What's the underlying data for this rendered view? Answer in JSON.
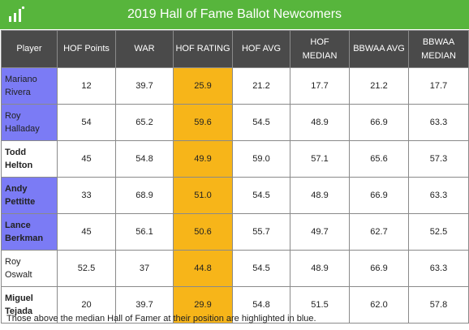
{
  "header": {
    "title": "2019 Hall of Fame Ballot Newcomers",
    "logo_icon": "bar-logo-icon",
    "bg_color": "#57b53c"
  },
  "table": {
    "columns": [
      "Player",
      "HOF Points",
      "WAR",
      "HOF RATING",
      "HOF AVG",
      "HOF MEDIAN",
      "BBWAA AVG",
      "BBWAA MEDIAN"
    ],
    "rows": [
      {
        "player": [
          "Mariano",
          "Rivera"
        ],
        "hof_points": "12",
        "war": "39.7",
        "hof_rating": "25.9",
        "hof_avg": "21.2",
        "hof_median": "17.7",
        "bbwaa_avg": "21.2",
        "bbwaa_median": "17.7",
        "highlight": true,
        "bold": false
      },
      {
        "player": [
          "Roy",
          "Halladay"
        ],
        "hof_points": "54",
        "war": "65.2",
        "hof_rating": "59.6",
        "hof_avg": "54.5",
        "hof_median": "48.9",
        "bbwaa_avg": "66.9",
        "bbwaa_median": "63.3",
        "highlight": true,
        "bold": false
      },
      {
        "player": [
          "Todd",
          "Helton"
        ],
        "hof_points": "45",
        "war": "54.8",
        "hof_rating": "49.9",
        "hof_avg": "59.0",
        "hof_median": "57.1",
        "bbwaa_avg": "65.6",
        "bbwaa_median": "57.3",
        "highlight": false,
        "bold": true
      },
      {
        "player": [
          "Andy",
          "Pettitte"
        ],
        "hof_points": "33",
        "war": "68.9",
        "hof_rating": "51.0",
        "hof_avg": "54.5",
        "hof_median": "48.9",
        "bbwaa_avg": "66.9",
        "bbwaa_median": "63.3",
        "highlight": true,
        "bold": true
      },
      {
        "player": [
          "Lance",
          "Berkman"
        ],
        "hof_points": "45",
        "war": "56.1",
        "hof_rating": "50.6",
        "hof_avg": "55.7",
        "hof_median": "49.7",
        "bbwaa_avg": "62.7",
        "bbwaa_median": "52.5",
        "highlight": true,
        "bold": true
      },
      {
        "player": [
          "Roy",
          "Oswalt"
        ],
        "hof_points": "52.5",
        "war": "37",
        "hof_rating": "44.8",
        "hof_avg": "54.5",
        "hof_median": "48.9",
        "bbwaa_avg": "66.9",
        "bbwaa_median": "63.3",
        "highlight": false,
        "bold": false
      },
      {
        "player": [
          "Miguel",
          "Tejada"
        ],
        "hof_points": "20",
        "war": "39.7",
        "hof_rating": "29.9",
        "hof_avg": "54.8",
        "hof_median": "51.5",
        "bbwaa_avg": "62.0",
        "bbwaa_median": "57.8",
        "highlight": false,
        "bold": true
      }
    ],
    "colors": {
      "header_bg": "#4a4a4a",
      "highlight_bg": "#7b7bf5",
      "rating_bg": "#f7b519"
    }
  },
  "footnote": "Those above the median Hall of Famer at their position are highlighted in blue."
}
